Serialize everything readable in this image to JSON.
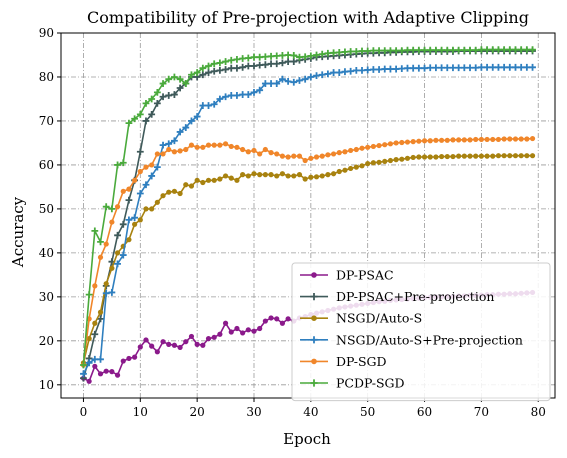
{
  "chart_data": {
    "type": "line",
    "title": "Compatibility of Pre-projection with Adaptive Clipping",
    "xlabel": "Epoch",
    "ylabel": "Accuracy",
    "xlim": [
      -3.95,
      82.95
    ],
    "ylim": [
      7,
      90
    ],
    "xticks": [
      0,
      10,
      20,
      30,
      40,
      50,
      60,
      70,
      80
    ],
    "yticks": [
      10,
      20,
      30,
      40,
      50,
      60,
      70,
      80,
      90
    ],
    "grid": true,
    "legend_position": "lower right",
    "x": [
      0,
      1,
      2,
      3,
      4,
      5,
      6,
      7,
      8,
      9,
      10,
      11,
      12,
      13,
      14,
      15,
      16,
      17,
      18,
      19,
      20,
      21,
      22,
      23,
      24,
      25,
      26,
      27,
      28,
      29,
      30,
      31,
      32,
      33,
      34,
      35,
      36,
      37,
      38,
      39,
      40,
      41,
      42,
      43,
      44,
      45,
      46,
      47,
      48,
      49,
      50,
      51,
      52,
      53,
      54,
      55,
      56,
      57,
      58,
      59,
      60,
      61,
      62,
      63,
      64,
      65,
      66,
      67,
      68,
      69,
      70,
      71,
      72,
      73,
      74,
      75,
      76,
      77,
      78,
      79
    ],
    "series": [
      {
        "name": "DP-PSAC",
        "color": "#8b1a8b",
        "marker": "circle",
        "values": [
          11.5,
          10.8,
          14.2,
          12.5,
          13.1,
          13.0,
          12.2,
          15.4,
          16.0,
          16.3,
          18.6,
          20.2,
          18.8,
          17.5,
          19.8,
          19.2,
          19.0,
          18.5,
          19.8,
          21.0,
          19.2,
          19.0,
          20.5,
          20.8,
          21.5,
          24.0,
          22.0,
          22.8,
          21.8,
          22.5,
          22.2,
          22.8,
          24.5,
          25.2,
          25.0,
          24.0,
          25.0,
          24.5,
          25.2,
          25.5,
          26.0,
          26.3,
          26.6,
          26.9,
          27.2,
          27.5,
          27.7,
          27.9,
          28.1,
          28.3,
          28.5,
          28.7,
          28.9,
          29.0,
          29.2,
          29.3,
          29.4,
          29.5,
          29.6,
          29.7,
          29.8,
          29.9,
          30.0,
          30.0,
          30.1,
          30.1,
          30.2,
          30.2,
          30.3,
          30.3,
          30.4,
          30.5,
          30.5,
          30.6,
          30.6,
          30.7,
          30.7,
          30.8,
          30.9,
          31.0
        ]
      },
      {
        "name": "DP-PSAC+Pre-projection",
        "color": "#3f5a5a",
        "marker": "plus",
        "values": [
          11.5,
          16.0,
          21.5,
          25.0,
          32.5,
          38.0,
          44.0,
          46.5,
          52.0,
          56.5,
          63.0,
          70.0,
          71.5,
          74.0,
          75.5,
          75.8,
          76.0,
          77.5,
          78.5,
          80.0,
          80.0,
          80.5,
          81.0,
          81.3,
          81.5,
          81.7,
          82.0,
          82.0,
          82.2,
          82.5,
          82.5,
          82.7,
          82.8,
          83.0,
          83.0,
          83.2,
          83.5,
          83.5,
          83.8,
          84.0,
          84.2,
          84.5,
          84.6,
          84.7,
          84.8,
          84.9,
          85.0,
          85.1,
          85.2,
          85.3,
          85.4,
          85.4,
          85.5,
          85.5,
          85.6,
          85.6,
          85.7,
          85.7,
          85.7,
          85.8,
          85.8,
          85.8,
          85.8,
          85.8,
          85.8,
          85.8,
          85.9,
          85.9,
          85.9,
          85.9,
          85.9,
          85.9,
          85.9,
          85.9,
          85.9,
          85.9,
          85.9,
          85.9,
          85.9,
          85.9
        ]
      },
      {
        "name": "NSGD/Auto-S",
        "color": "#a8820f",
        "marker": "circle",
        "values": [
          15.0,
          20.5,
          24.0,
          26.5,
          33.0,
          36.5,
          40.0,
          41.5,
          43.0,
          46.5,
          47.5,
          50.0,
          50.0,
          51.5,
          53.0,
          53.8,
          54.0,
          53.5,
          55.5,
          55.2,
          56.5,
          56.0,
          56.5,
          56.5,
          56.8,
          57.5,
          57.0,
          56.5,
          57.8,
          57.5,
          58.0,
          57.8,
          57.8,
          57.8,
          57.5,
          58.0,
          57.5,
          57.5,
          57.8,
          56.8,
          57.2,
          57.3,
          57.5,
          57.8,
          58.0,
          58.5,
          58.8,
          59.2,
          59.5,
          59.8,
          60.3,
          60.5,
          60.6,
          60.8,
          61.0,
          61.2,
          61.3,
          61.5,
          61.7,
          61.8,
          61.8,
          61.8,
          61.8,
          61.9,
          61.9,
          61.9,
          62.0,
          62.0,
          62.0,
          62.0,
          62.0,
          62.0,
          62.0,
          62.1,
          62.1,
          62.1,
          62.1,
          62.1,
          62.1,
          62.1
        ]
      },
      {
        "name": "NSGD/Auto-S+Pre-projection",
        "color": "#2f7fbf",
        "marker": "plus",
        "values": [
          12.5,
          15.0,
          15.8,
          15.8,
          30.8,
          31.0,
          37.5,
          39.5,
          47.5,
          48.0,
          53.5,
          55.5,
          57.5,
          59.5,
          64.5,
          64.8,
          65.5,
          67.5,
          68.5,
          70.0,
          71.0,
          73.5,
          73.5,
          73.8,
          75.0,
          75.5,
          75.8,
          75.8,
          76.0,
          76.0,
          76.5,
          77.0,
          78.5,
          78.5,
          78.5,
          79.5,
          79.0,
          78.8,
          79.2,
          79.5,
          80.0,
          80.3,
          80.5,
          80.7,
          81.0,
          81.0,
          81.2,
          81.3,
          81.5,
          81.5,
          81.6,
          81.7,
          81.7,
          81.8,
          81.8,
          81.8,
          81.9,
          82.0,
          82.0,
          82.0,
          82.0,
          82.1,
          82.1,
          82.1,
          82.1,
          82.1,
          82.1,
          82.1,
          82.1,
          82.1,
          82.2,
          82.2,
          82.2,
          82.2,
          82.2,
          82.2,
          82.2,
          82.2,
          82.2,
          82.2
        ]
      },
      {
        "name": "DP-SGD",
        "color": "#f0862a",
        "marker": "circle",
        "values": [
          14.5,
          25.0,
          32.5,
          39.0,
          42.0,
          47.0,
          50.5,
          54.0,
          54.5,
          56.5,
          58.5,
          59.5,
          60.0,
          62.5,
          62.5,
          63.5,
          63.0,
          63.2,
          63.5,
          64.5,
          64.0,
          64.0,
          64.5,
          64.5,
          64.5,
          64.8,
          64.2,
          64.0,
          63.5,
          63.0,
          63.3,
          62.5,
          63.5,
          62.8,
          62.5,
          62.0,
          61.8,
          62.0,
          62.0,
          61.0,
          61.5,
          61.8,
          62.0,
          62.3,
          62.5,
          62.8,
          63.0,
          63.3,
          63.5,
          63.8,
          64.0,
          64.2,
          64.4,
          64.6,
          64.8,
          65.0,
          65.1,
          65.2,
          65.3,
          65.4,
          65.5,
          65.5,
          65.6,
          65.6,
          65.6,
          65.7,
          65.7,
          65.7,
          65.7,
          65.8,
          65.8,
          65.8,
          65.8,
          65.8,
          65.9,
          65.9,
          65.9,
          65.9,
          65.9,
          66.0
        ]
      },
      {
        "name": "PCDP-SGD",
        "color": "#4aaa3c",
        "marker": "plus",
        "values": [
          14.5,
          30.5,
          45.0,
          42.5,
          50.5,
          50.0,
          60.0,
          60.5,
          69.5,
          70.5,
          71.5,
          74.0,
          75.0,
          76.5,
          78.5,
          79.5,
          80.0,
          79.5,
          78.5,
          80.5,
          81.0,
          82.0,
          82.5,
          83.0,
          83.2,
          83.5,
          83.8,
          84.0,
          84.2,
          84.3,
          84.5,
          84.5,
          84.6,
          84.7,
          84.8,
          84.9,
          85.0,
          84.9,
          84.5,
          84.6,
          84.8,
          85.0,
          85.2,
          85.4,
          85.5,
          85.6,
          85.7,
          85.8,
          85.8,
          85.9,
          85.9,
          86.0,
          86.0,
          86.0,
          86.0,
          86.0,
          86.0,
          86.1,
          86.1,
          86.1,
          86.1,
          86.1,
          86.1,
          86.1,
          86.1,
          86.1,
          86.1,
          86.1,
          86.1,
          86.1,
          86.2,
          86.2,
          86.2,
          86.2,
          86.2,
          86.2,
          86.2,
          86.2,
          86.2,
          86.2
        ]
      }
    ]
  }
}
